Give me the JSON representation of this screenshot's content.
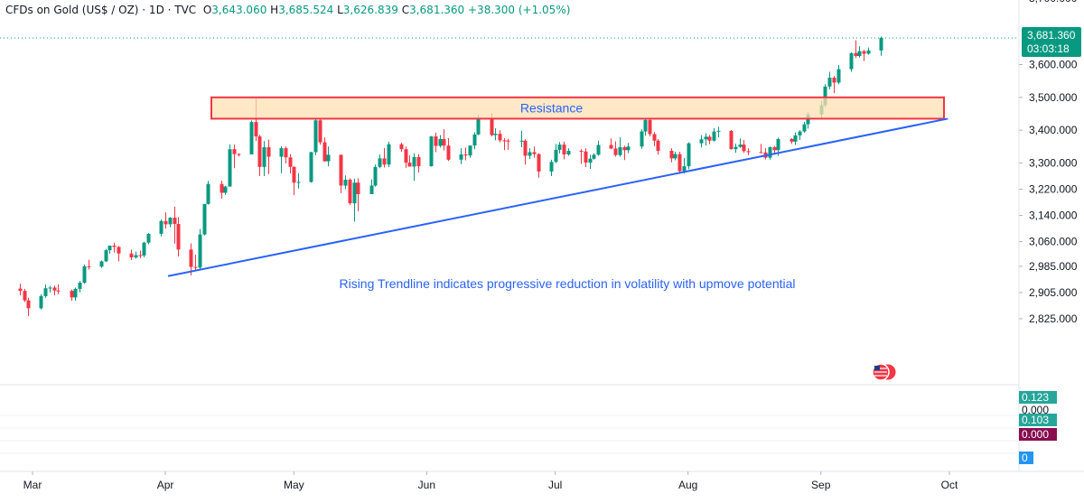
{
  "header": {
    "symbol": "CFDs on Gold (US$ / OZ) · 1D · TVC",
    "o_label": "O",
    "o_value": "3,643.060",
    "h_label": "H",
    "h_value": "3,685.524",
    "l_label": "L",
    "l_value": "3,626.839",
    "c_label": "C",
    "c_value": "3,681.360",
    "change": "+38.300 (+1.05%)"
  },
  "price_tag": {
    "price": "3,681.360",
    "countdown": "03:03:18"
  },
  "indicator_tags": [
    {
      "text": "0.123",
      "color": "#26a69a"
    },
    {
      "text": "0.000",
      "color": "#ffffff"
    },
    {
      "text": "0.103",
      "color": "#26a69a"
    },
    {
      "text": "0.000",
      "color": "#880e4f"
    },
    {
      "text": "0",
      "color": "#2196f3"
    }
  ],
  "colors": {
    "up": "#089981",
    "down": "#f23645",
    "trendline": "#2962ff",
    "resistance_fill": "#ffe0b2",
    "resistance_border": "#f23645",
    "annotation": "#2962ff",
    "axis_text": "#131722"
  },
  "chart_data": {
    "type": "candlestick",
    "y_ticks": [
      2825,
      2905,
      2985,
      3060,
      3140,
      3220,
      3300,
      3400,
      3500,
      3600
    ],
    "y_tick_labels": [
      "2,825.000",
      "2,905.000",
      "2,985.000",
      "3,060.000",
      "3,140.000",
      "3,220.000",
      "3,300.000",
      "3,400.000",
      "3,500.000",
      "3,600.000"
    ],
    "x_labels": [
      "Mar",
      "Apr",
      "May",
      "Jun",
      "Jul",
      "Aug",
      "Sep",
      "Oct"
    ],
    "x_label_dates": [
      "2025-03-01",
      "2025-04-01",
      "2025-05-01",
      "2025-06-01",
      "2025-07-01",
      "2025-08-01",
      "2025-09-01",
      "2025-10-01"
    ],
    "candles": [
      [
        "2025-02-26",
        2917,
        2932,
        2896,
        2910
      ],
      [
        "2025-02-27",
        2910,
        2916,
        2876,
        2881
      ],
      [
        "2025-02-28",
        2881,
        2889,
        2833,
        2857
      ],
      [
        "2025-03-03",
        2857,
        2900,
        2853,
        2894
      ],
      [
        "2025-03-04",
        2894,
        2930,
        2889,
        2918
      ],
      [
        "2025-03-05",
        2918,
        2925,
        2905,
        2920
      ],
      [
        "2025-03-06",
        2920,
        2926,
        2897,
        2911
      ],
      [
        "2025-03-07",
        2911,
        2930,
        2900,
        2910
      ],
      [
        "2025-03-10",
        2910,
        2914,
        2880,
        2890
      ],
      [
        "2025-03-11",
        2890,
        2920,
        2880,
        2916
      ],
      [
        "2025-03-12",
        2916,
        2940,
        2905,
        2935
      ],
      [
        "2025-03-13",
        2935,
        2990,
        2932,
        2985
      ],
      [
        "2025-03-14",
        2985,
        3005,
        2975,
        2984
      ],
      [
        "2025-03-17",
        2984,
        3003,
        2980,
        3000
      ],
      [
        "2025-03-18",
        3000,
        3038,
        2998,
        3034
      ],
      [
        "2025-03-19",
        3034,
        3047,
        3023,
        3048
      ],
      [
        "2025-03-20",
        3048,
        3057,
        3027,
        3044
      ],
      [
        "2025-03-21",
        3044,
        3047,
        3000,
        3024
      ],
      [
        "2025-03-24",
        3024,
        3036,
        3004,
        3012
      ],
      [
        "2025-03-25",
        3012,
        3030,
        3008,
        3019
      ],
      [
        "2025-03-26",
        3019,
        3033,
        3010,
        3018
      ],
      [
        "2025-03-27",
        3018,
        3060,
        3012,
        3057
      ],
      [
        "2025-03-28",
        3057,
        3086,
        3052,
        3084
      ],
      [
        "2025-03-31",
        3084,
        3128,
        3076,
        3123
      ],
      [
        "2025-04-01",
        3123,
        3149,
        3100,
        3113
      ],
      [
        "2025-04-02",
        3113,
        3135,
        3104,
        3133
      ],
      [
        "2025-04-03",
        3133,
        3167,
        3054,
        3114
      ],
      [
        "2025-04-04",
        3114,
        3135,
        3015,
        3036
      ],
      [
        "2025-04-07",
        3036,
        3055,
        2957,
        2983
      ],
      [
        "2025-04-08",
        2983,
        3020,
        2970,
        2981
      ],
      [
        "2025-04-09",
        2981,
        3099,
        2975,
        3082
      ],
      [
        "2025-04-10",
        3082,
        3175,
        3079,
        3175
      ],
      [
        "2025-04-11",
        3175,
        3245,
        3173,
        3236
      ],
      [
        "2025-04-14",
        3236,
        3246,
        3191,
        3209
      ],
      [
        "2025-04-15",
        3209,
        3230,
        3203,
        3228
      ],
      [
        "2025-04-16",
        3228,
        3357,
        3228,
        3342
      ],
      [
        "2025-04-17",
        3342,
        3356,
        3284,
        3327
      ],
      [
        "2025-04-18",
        3327,
        3330,
        3320,
        3326
      ],
      [
        "2025-04-21",
        3326,
        3430,
        3326,
        3425
      ],
      [
        "2025-04-22",
        3425,
        3500,
        3367,
        3381
      ],
      [
        "2025-04-23",
        3381,
        3386,
        3260,
        3288
      ],
      [
        "2025-04-24",
        3288,
        3367,
        3260,
        3348
      ],
      [
        "2025-04-25",
        3348,
        3371,
        3266,
        3319
      ],
      [
        "2025-04-28",
        3319,
        3351,
        3269,
        3345
      ],
      [
        "2025-04-29",
        3345,
        3350,
        3299,
        3317
      ],
      [
        "2025-04-30",
        3317,
        3327,
        3268,
        3288
      ],
      [
        "2025-05-01",
        3288,
        3290,
        3202,
        3240
      ],
      [
        "2025-05-02",
        3240,
        3269,
        3222,
        3242
      ],
      [
        "2025-05-05",
        3242,
        3334,
        3240,
        3333
      ],
      [
        "2025-05-06",
        3333,
        3437,
        3324,
        3430
      ],
      [
        "2025-05-07",
        3430,
        3436,
        3356,
        3363
      ],
      [
        "2025-05-08",
        3363,
        3378,
        3304,
        3305
      ],
      [
        "2025-05-09",
        3305,
        3350,
        3290,
        3325
      ],
      [
        "2025-05-12",
        3325,
        3325,
        3208,
        3231
      ],
      [
        "2025-05-13",
        3231,
        3262,
        3220,
        3249
      ],
      [
        "2025-05-14",
        3249,
        3253,
        3172,
        3177
      ],
      [
        "2025-05-15",
        3177,
        3252,
        3121,
        3240
      ],
      [
        "2025-05-16",
        3240,
        3253,
        3153,
        3205
      ],
      [
        "2025-05-19",
        3205,
        3250,
        3205,
        3231
      ],
      [
        "2025-05-20",
        3231,
        3295,
        3228,
        3288
      ],
      [
        "2025-05-21",
        3288,
        3326,
        3284,
        3314
      ],
      [
        "2025-05-22",
        3314,
        3345,
        3286,
        3295
      ],
      [
        "2025-05-23",
        3295,
        3365,
        3287,
        3357
      ],
      [
        "2025-05-26",
        3357,
        3362,
        3334,
        3342
      ],
      [
        "2025-05-27",
        3342,
        3350,
        3285,
        3301
      ],
      [
        "2025-05-28",
        3301,
        3324,
        3290,
        3289
      ],
      [
        "2025-05-29",
        3289,
        3330,
        3245,
        3318
      ],
      [
        "2025-05-30",
        3318,
        3327,
        3271,
        3290
      ],
      [
        "2025-06-02",
        3290,
        3382,
        3289,
        3381
      ],
      [
        "2025-06-03",
        3381,
        3392,
        3333,
        3352
      ],
      [
        "2025-06-04",
        3352,
        3385,
        3347,
        3373
      ],
      [
        "2025-06-05",
        3373,
        3403,
        3338,
        3353
      ],
      [
        "2025-06-06",
        3353,
        3376,
        3306,
        3310
      ],
      [
        "2025-06-09",
        3310,
        3345,
        3296,
        3326
      ],
      [
        "2025-06-10",
        3326,
        3347,
        3308,
        3323
      ],
      [
        "2025-06-11",
        3323,
        3354,
        3316,
        3353
      ],
      [
        "2025-06-12",
        3353,
        3394,
        3342,
        3387
      ],
      [
        "2025-06-13",
        3387,
        3446,
        3385,
        3433
      ],
      [
        "2025-06-16",
        3433,
        3451,
        3381,
        3385
      ],
      [
        "2025-06-17",
        3385,
        3406,
        3369,
        3389
      ],
      [
        "2025-06-18",
        3389,
        3400,
        3363,
        3369
      ],
      [
        "2025-06-19",
        3369,
        3376,
        3339,
        3368
      ],
      [
        "2025-06-20",
        3368,
        3374,
        3340,
        3367
      ],
      [
        "2025-06-23",
        3367,
        3398,
        3348,
        3368
      ],
      [
        "2025-06-24",
        3368,
        3372,
        3295,
        3322
      ],
      [
        "2025-06-25",
        3322,
        3345,
        3312,
        3333
      ],
      [
        "2025-06-26",
        3333,
        3350,
        3316,
        3327
      ],
      [
        "2025-06-27",
        3327,
        3330,
        3255,
        3274
      ],
      [
        "2025-06-30",
        3274,
        3310,
        3260,
        3303
      ],
      [
        "2025-07-01",
        3303,
        3358,
        3300,
        3340
      ],
      [
        "2025-07-02",
        3340,
        3364,
        3329,
        3356
      ],
      [
        "2025-07-03",
        3356,
        3365,
        3311,
        3326
      ],
      [
        "2025-07-04",
        3326,
        3345,
        3322,
        3337
      ],
      [
        "2025-07-07",
        3337,
        3342,
        3297,
        3335
      ],
      [
        "2025-07-08",
        3335,
        3345,
        3287,
        3301
      ],
      [
        "2025-07-09",
        3301,
        3325,
        3282,
        3313
      ],
      [
        "2025-07-10",
        3313,
        3330,
        3310,
        3325
      ],
      [
        "2025-07-11",
        3325,
        3368,
        3322,
        3355
      ],
      [
        "2025-07-14",
        3355,
        3375,
        3342,
        3344
      ],
      [
        "2025-07-15",
        3344,
        3366,
        3320,
        3324
      ],
      [
        "2025-07-16",
        3324,
        3378,
        3319,
        3348
      ],
      [
        "2025-07-17",
        3348,
        3353,
        3309,
        3339
      ],
      [
        "2025-07-18",
        3339,
        3361,
        3330,
        3350
      ],
      [
        "2025-07-21",
        3350,
        3402,
        3343,
        3396
      ],
      [
        "2025-07-22",
        3396,
        3433,
        3383,
        3431
      ],
      [
        "2025-07-23",
        3431,
        3438,
        3381,
        3388
      ],
      [
        "2025-07-24",
        3388,
        3394,
        3351,
        3368
      ],
      [
        "2025-07-25",
        3368,
        3373,
        3325,
        3337
      ],
      [
        "2025-07-28",
        3337,
        3345,
        3302,
        3314
      ],
      [
        "2025-07-29",
        3314,
        3334,
        3308,
        3327
      ],
      [
        "2025-07-30",
        3327,
        3334,
        3267,
        3275
      ],
      [
        "2025-07-31",
        3275,
        3315,
        3268,
        3290
      ],
      [
        "2025-08-01",
        3290,
        3363,
        3281,
        3360
      ],
      [
        "2025-08-04",
        3360,
        3385,
        3347,
        3372
      ],
      [
        "2025-08-05",
        3372,
        3391,
        3353,
        3380
      ],
      [
        "2025-08-06",
        3380,
        3385,
        3357,
        3368
      ],
      [
        "2025-08-07",
        3368,
        3406,
        3365,
        3396
      ],
      [
        "2025-08-08",
        3396,
        3410,
        3378,
        3398
      ],
      [
        "2025-08-11",
        3398,
        3400,
        3341,
        3342
      ],
      [
        "2025-08-12",
        3342,
        3359,
        3331,
        3349
      ],
      [
        "2025-08-13",
        3349,
        3375,
        3346,
        3356
      ],
      [
        "2025-08-14",
        3356,
        3370,
        3331,
        3336
      ],
      [
        "2025-08-15",
        3336,
        3345,
        3324,
        3333
      ],
      [
        "2025-08-18",
        3333,
        3358,
        3330,
        3332
      ],
      [
        "2025-08-19",
        3332,
        3345,
        3311,
        3316
      ],
      [
        "2025-08-20",
        3316,
        3350,
        3310,
        3348
      ],
      [
        "2025-08-21",
        3348,
        3352,
        3325,
        3339
      ],
      [
        "2025-08-22",
        3339,
        3377,
        3322,
        3373
      ],
      [
        "2025-08-25",
        3373,
        3376,
        3358,
        3365
      ],
      [
        "2025-08-26",
        3365,
        3393,
        3355,
        3384
      ],
      [
        "2025-08-27",
        3384,
        3400,
        3370,
        3396
      ],
      [
        "2025-08-28",
        3396,
        3425,
        3392,
        3418
      ],
      [
        "2025-08-29",
        3418,
        3454,
        3405,
        3448
      ],
      [
        "2025-09-01",
        3448,
        3490,
        3437,
        3476
      ],
      [
        "2025-09-02",
        3476,
        3540,
        3470,
        3533
      ],
      [
        "2025-09-03",
        3533,
        3578,
        3525,
        3560
      ],
      [
        "2025-09-04",
        3560,
        3565,
        3513,
        3545
      ],
      [
        "2025-09-05",
        3545,
        3599,
        3540,
        3586
      ],
      [
        "2025-09-08",
        3586,
        3637,
        3578,
        3635
      ],
      [
        "2025-09-09",
        3635,
        3674,
        3620,
        3626
      ],
      [
        "2025-09-10",
        3626,
        3656,
        3621,
        3641
      ],
      [
        "2025-09-11",
        3641,
        3645,
        3611,
        3633
      ],
      [
        "2025-09-12",
        3633,
        3652,
        3630,
        3643
      ],
      [
        "2025-09-15",
        3643,
        3685.524,
        3626.839,
        3681.36
      ]
    ],
    "annotations": {
      "resistance_label": "Resistance",
      "resistance_zone": [
        3435,
        3500
      ],
      "trendline_label": "Rising Trendline indicates progressive reduction in volatility with upmove potential",
      "trendline": [
        [
          "2025-04-01",
          2955
        ],
        [
          "2025-09-30",
          3435
        ]
      ]
    },
    "last_price": 3681.36
  }
}
